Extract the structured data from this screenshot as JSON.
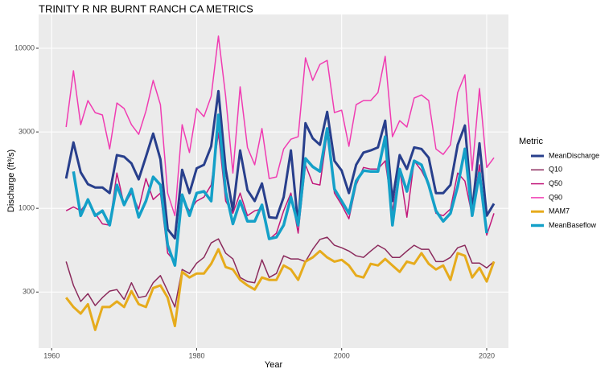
{
  "chart_data": {
    "type": "line",
    "title": "TRINITY R NR BURNT RANCH CA  METRICS",
    "x_label": "Year",
    "y_label": "Discharge (ft³/s)",
    "legend_title": "Metric",
    "legend": "right",
    "log_y": true,
    "grid": true,
    "xlim": [
      1958.2,
      2023
    ],
    "xticks": [
      1960,
      1980,
      2000,
      2020
    ],
    "ylim": [
      134,
      16250
    ],
    "yticks": [
      300,
      1000,
      3000,
      10000
    ],
    "x": [
      1962,
      1963,
      1964,
      1965,
      1966,
      1967,
      1968,
      1969,
      1970,
      1971,
      1972,
      1973,
      1974,
      1975,
      1976,
      1977,
      1978,
      1979,
      1980,
      1981,
      1982,
      1983,
      1984,
      1985,
      1986,
      1987,
      1988,
      1989,
      1990,
      1991,
      1992,
      1993,
      1994,
      1995,
      1996,
      1997,
      1998,
      1999,
      2000,
      2001,
      2002,
      2003,
      2004,
      2005,
      2006,
      2007,
      2008,
      2009,
      2010,
      2011,
      2012,
      2013,
      2014,
      2015,
      2016,
      2017,
      2018,
      2019,
      2020,
      2021
    ],
    "series": [
      {
        "name": "MeanDischarge",
        "color": "#283f8c",
        "values": [
          1535,
          2580,
          1680,
          1415,
          1350,
          1350,
          1245,
          2150,
          2100,
          1910,
          1517,
          2100,
          2930,
          2025,
          740,
          650,
          1740,
          1245,
          1780,
          1870,
          2440,
          5400,
          1760,
          965,
          2300,
          1300,
          1110,
          1430,
          880,
          870,
          1175,
          2300,
          785,
          3400,
          2740,
          2490,
          4000,
          1980,
          1720,
          1245,
          1870,
          2230,
          2300,
          2400,
          3530,
          1110,
          2150,
          1760,
          2400,
          2350,
          2070,
          1245,
          1245,
          1400,
          2490,
          3290,
          965,
          2550,
          900,
          1070
        ]
      },
      {
        "name": "Q10",
        "color": "#8b2a5c",
        "values": [
          465,
          330,
          262,
          293,
          247,
          277,
          304,
          311,
          270,
          343,
          277,
          283,
          343,
          380,
          304,
          242,
          415,
          392,
          455,
          494,
          608,
          645,
          525,
          483,
          370,
          349,
          343,
          477,
          370,
          392,
          505,
          483,
          483,
          465,
          555,
          640,
          660,
          588,
          567,
          541,
          505,
          494,
          541,
          588,
          555,
          494,
          494,
          541,
          588,
          555,
          555,
          465,
          465,
          494,
          567,
          588,
          455,
          455,
          425,
          465
        ]
      },
      {
        "name": "Q50",
        "color": "#c2187a",
        "values": [
          965,
          1020,
          965,
          1110,
          930,
          800,
          785,
          1660,
          1050,
          1245,
          990,
          1535,
          1135,
          1245,
          525,
          465,
          1150,
          965,
          1110,
          1175,
          1400,
          2960,
          1110,
          930,
          1245,
          900,
          965,
          990,
          640,
          700,
          965,
          1245,
          700,
          1870,
          1430,
          1400,
          2960,
          1245,
          1050,
          860,
          1400,
          1800,
          1760,
          1760,
          1980,
          965,
          1760,
          880,
          1980,
          1720,
          1400,
          930,
          900,
          990,
          1660,
          1480,
          900,
          1870,
          680,
          930
        ]
      },
      {
        "name": "Q90",
        "color": "#f03cb2",
        "values": [
          3220,
          7230,
          3330,
          4710,
          3960,
          3830,
          2350,
          4550,
          4200,
          3330,
          2900,
          4050,
          6300,
          4440,
          1245,
          900,
          3330,
          2230,
          4200,
          3740,
          5000,
          11900,
          5000,
          1660,
          5740,
          2400,
          1870,
          3150,
          1535,
          1570,
          2350,
          2700,
          2800,
          8700,
          6300,
          7930,
          8400,
          3960,
          4100,
          2440,
          4440,
          4710,
          4710,
          5290,
          8900,
          2800,
          3530,
          3220,
          4880,
          5110,
          4710,
          2350,
          2170,
          2490,
          5290,
          6830,
          1720,
          5600,
          1800,
          2070
        ]
      },
      {
        "name": "MAM7",
        "color": "#e6ab1c",
        "values": [
          277,
          242,
          220,
          252,
          174,
          242,
          242,
          262,
          242,
          304,
          252,
          242,
          318,
          330,
          277,
          184,
          401,
          370,
          392,
          392,
          450,
          555,
          430,
          415,
          357,
          330,
          311,
          370,
          357,
          357,
          440,
          415,
          357,
          465,
          494,
          541,
          494,
          465,
          477,
          440,
          380,
          370,
          450,
          440,
          483,
          440,
          401,
          465,
          450,
          525,
          450,
          415,
          440,
          357,
          525,
          505,
          370,
          425,
          349,
          465
        ]
      },
      {
        "name": "MeanBaseflow",
        "color": "#14a0c8",
        "values": [
          null,
          1700,
          900,
          1135,
          900,
          965,
          785,
          1400,
          1050,
          1320,
          880,
          1110,
          1570,
          1400,
          590,
          440,
          1215,
          900,
          1245,
          1275,
          1110,
          3830,
          1275,
          800,
          1110,
          830,
          830,
          1050,
          645,
          660,
          785,
          1175,
          785,
          2050,
          1820,
          1700,
          3150,
          1320,
          1110,
          930,
          1480,
          1720,
          1700,
          1700,
          2800,
          785,
          1760,
          1275,
          1980,
          1870,
          1400,
          965,
          830,
          930,
          1370,
          2350,
          900,
          1660,
          700,
          null
        ]
      }
    ]
  }
}
